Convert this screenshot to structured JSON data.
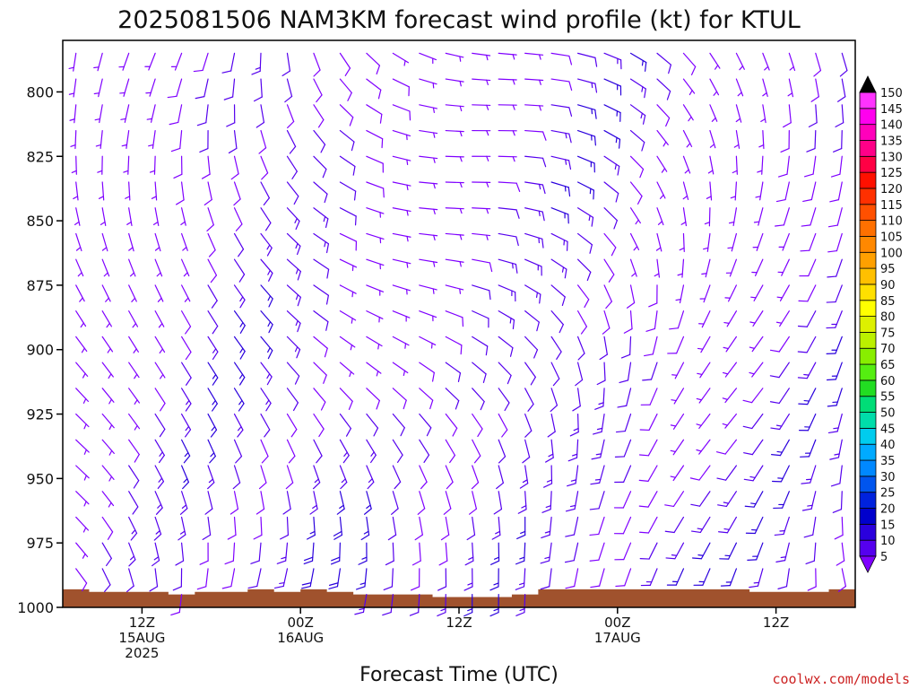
{
  "chart_data": {
    "type": "wind-barb",
    "title": "2025081506 NAM3KM forecast wind profile (kt) for KTUL",
    "xlabel": "Forecast Time (UTC)",
    "ylabel": "",
    "units": "kt",
    "y_axis": {
      "ticks": [
        800,
        825,
        850,
        875,
        900,
        925,
        950,
        975,
        1000
      ],
      "ylim": [
        1000,
        780
      ]
    },
    "x_axis": {
      "ticks": [
        {
          "hour": 6,
          "line1": "12Z",
          "line2": "15AUG",
          "line3": "2025"
        },
        {
          "hour": 18,
          "line1": "00Z",
          "line2": "16AUG",
          "line3": ""
        },
        {
          "hour": 30,
          "line1": "12Z",
          "line2": "",
          "line3": ""
        },
        {
          "hour": 42,
          "line1": "00Z",
          "line2": "17AUG",
          "line3": ""
        },
        {
          "hour": 54,
          "line1": "12Z",
          "line2": "",
          "line3": ""
        }
      ],
      "xlim": [
        0,
        60
      ]
    },
    "levels": [
      785,
      795,
      805,
      815,
      825,
      835,
      845,
      855,
      865,
      875,
      885,
      895,
      905,
      915,
      925,
      935,
      945,
      955,
      965,
      975,
      985,
      995
    ],
    "times": [
      1,
      3,
      5,
      7,
      9,
      11,
      13,
      15,
      17,
      19,
      21,
      23,
      25,
      27,
      29,
      31,
      33,
      35,
      37,
      39,
      41,
      43,
      45,
      47,
      49,
      51,
      53,
      55,
      57,
      59
    ],
    "surface_pressure": [
      993,
      994,
      994,
      994,
      995,
      994,
      994,
      993,
      994,
      993,
      994,
      995,
      995,
      995,
      996,
      996,
      996,
      995,
      993,
      993,
      993,
      993,
      993,
      993,
      993,
      993,
      994,
      994,
      994,
      993
    ],
    "colorbar": {
      "labels": [
        5,
        10,
        15,
        20,
        25,
        30,
        35,
        40,
        45,
        50,
        55,
        60,
        65,
        70,
        75,
        80,
        85,
        90,
        95,
        100,
        105,
        110,
        115,
        120,
        125,
        130,
        135,
        140,
        145,
        150
      ],
      "colors": [
        "#7f00ff",
        "#5500ee",
        "#2a00dd",
        "#0000cc",
        "#0022dd",
        "#0055ee",
        "#0088ff",
        "#00aaff",
        "#00ccee",
        "#00ddaa",
        "#00dd77",
        "#22dd22",
        "#55ee11",
        "#88ee00",
        "#bbf000",
        "#ddf000",
        "#ffff00",
        "#ffe000",
        "#ffc000",
        "#ffa000",
        "#ff8800",
        "#ff7000",
        "#ff5000",
        "#ff3000",
        "#ff1000",
        "#ff0044",
        "#ff0088",
        "#ff00bb",
        "#ff00ee",
        "#ff33ff"
      ]
    },
    "credit": "coolwx.com/models"
  }
}
